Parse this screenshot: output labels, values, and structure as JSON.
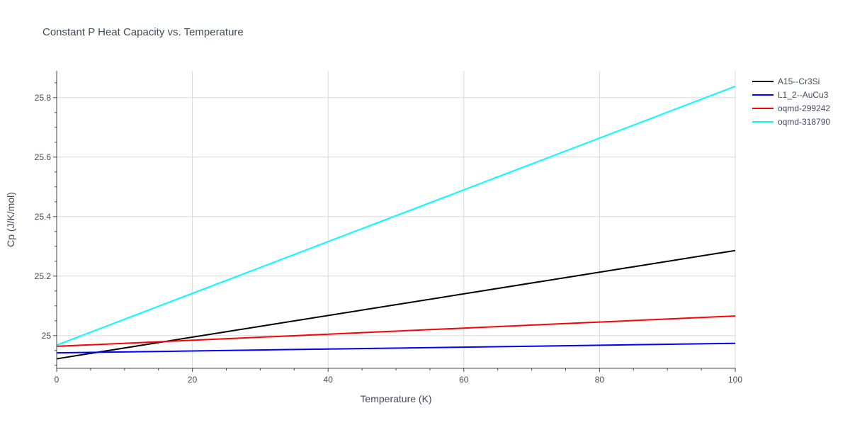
{
  "chart_data": {
    "type": "line",
    "title": "Constant P Heat Capacity vs. Temperature",
    "xlabel": "Temperature (K)",
    "ylabel": "Cp (J/K/mol)",
    "xlim": [
      0,
      100
    ],
    "ylim": [
      24.89,
      25.89
    ],
    "xticks": [
      0,
      20,
      40,
      60,
      80,
      100
    ],
    "xtick_labels": [
      "0",
      "20",
      "40",
      "60",
      "80",
      "100"
    ],
    "yticks": [
      25.0,
      25.2,
      25.4,
      25.6,
      25.8
    ],
    "ytick_labels": [
      "25",
      "25.2",
      "25.4",
      "25.6",
      "25.8"
    ],
    "grid": true,
    "legend_position": "top-right",
    "series": [
      {
        "name": "A15--Cr3Si",
        "color": "#000000",
        "x": [
          0,
          100
        ],
        "y": [
          24.922,
          25.286
        ]
      },
      {
        "name": "L1_2--AuCu3",
        "color": "#0000ff",
        "x": [
          0,
          100
        ],
        "y": [
          24.942,
          24.974
        ]
      },
      {
        "name": "oqmd-299242",
        "color": "#ff0000",
        "x": [
          0,
          100
        ],
        "y": [
          24.964,
          25.066
        ]
      },
      {
        "name": "oqmd-318790",
        "color": "#00ffff",
        "x": [
          0,
          100
        ],
        "y": [
          24.968,
          25.838
        ]
      }
    ]
  }
}
